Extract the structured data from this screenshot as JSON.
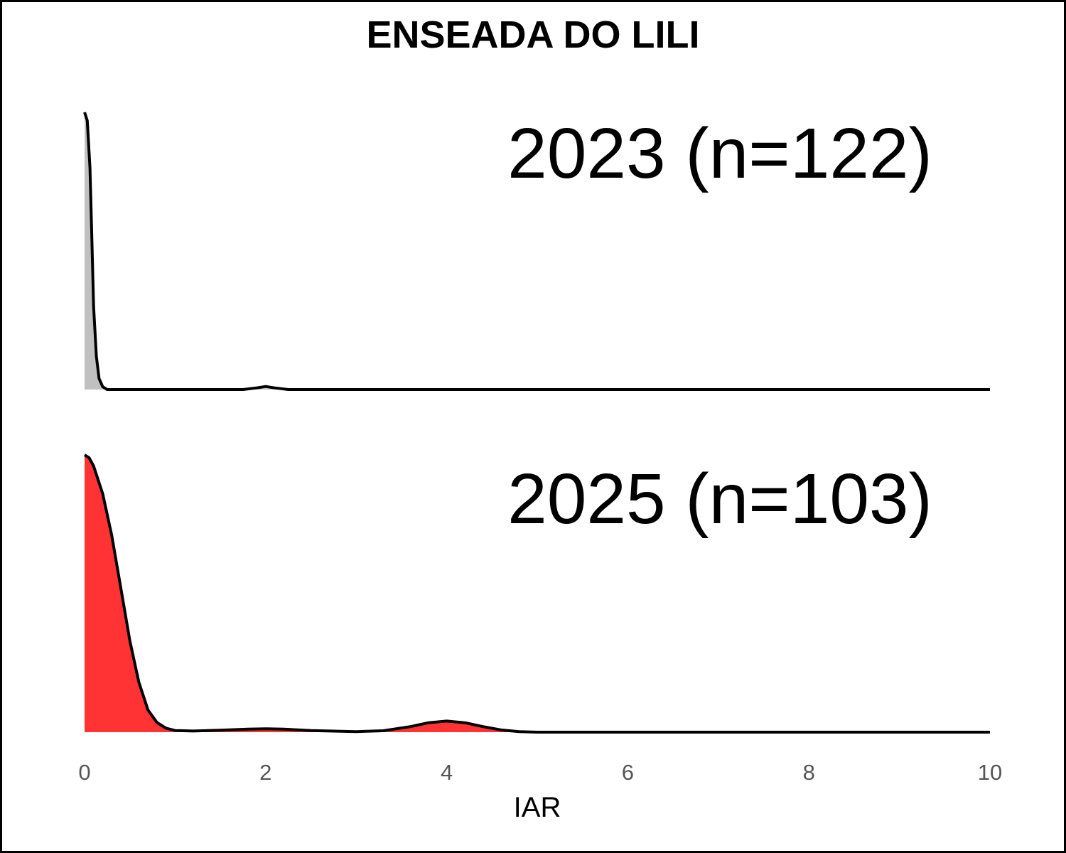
{
  "chart_data": {
    "type": "area",
    "title": "ENSEADA DO LILI",
    "xlabel": "IAR",
    "ylabel": "",
    "xlim": [
      0,
      10
    ],
    "x_ticks": [
      "0",
      "2",
      "4",
      "6",
      "8",
      "10"
    ],
    "grid": false,
    "legend": "none",
    "series": [
      {
        "annotation": "2023 (n=122)",
        "fill_color": "#c0c0c0",
        "line_color": "#000000",
        "relative_density": [
          [
            0,
            1.0
          ],
          [
            0.03,
            0.97
          ],
          [
            0.06,
            0.8
          ],
          [
            0.08,
            0.55
          ],
          [
            0.1,
            0.3
          ],
          [
            0.13,
            0.12
          ],
          [
            0.16,
            0.04
          ],
          [
            0.2,
            0.01
          ],
          [
            0.25,
            0.0
          ],
          [
            1.75,
            0.0
          ],
          [
            1.9,
            0.006
          ],
          [
            2.0,
            0.011
          ],
          [
            2.1,
            0.006
          ],
          [
            2.25,
            0.0
          ],
          [
            10,
            0.0
          ]
        ]
      },
      {
        "annotation": "2025 (n=103)",
        "fill_color": "#ff3333",
        "line_color": "#000000",
        "relative_density": [
          [
            0,
            1.0
          ],
          [
            0.05,
            0.99
          ],
          [
            0.1,
            0.96
          ],
          [
            0.2,
            0.86
          ],
          [
            0.3,
            0.71
          ],
          [
            0.4,
            0.52
          ],
          [
            0.5,
            0.33
          ],
          [
            0.6,
            0.18
          ],
          [
            0.7,
            0.08
          ],
          [
            0.8,
            0.035
          ],
          [
            0.9,
            0.014
          ],
          [
            1.0,
            0.006
          ],
          [
            1.2,
            0.004
          ],
          [
            1.5,
            0.007
          ],
          [
            1.8,
            0.011
          ],
          [
            2.0,
            0.012
          ],
          [
            2.2,
            0.011
          ],
          [
            2.5,
            0.006
          ],
          [
            3.0,
            0.002
          ],
          [
            3.3,
            0.005
          ],
          [
            3.6,
            0.02
          ],
          [
            3.8,
            0.034
          ],
          [
            4.0,
            0.04
          ],
          [
            4.2,
            0.034
          ],
          [
            4.4,
            0.02
          ],
          [
            4.6,
            0.008
          ],
          [
            4.8,
            0.002
          ],
          [
            5.0,
            0.0
          ],
          [
            10,
            0.0
          ]
        ]
      }
    ]
  }
}
